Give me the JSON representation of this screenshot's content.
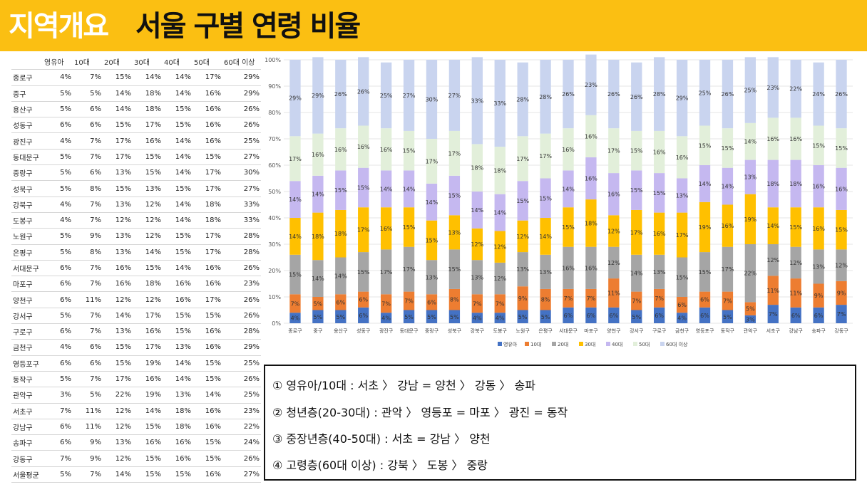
{
  "header": {
    "title_main": "지역개요",
    "title_sub": "서울 구별 연령 비율"
  },
  "table": {
    "columns": [
      "영유아",
      "10대",
      "20대",
      "30대",
      "40대",
      "50대",
      "60대 이상"
    ],
    "rows": [
      {
        "name": "종로구",
        "values": [
          "4%",
          "7%",
          "15%",
          "14%",
          "14%",
          "17%",
          "29%"
        ]
      },
      {
        "name": "중구",
        "values": [
          "5%",
          "5%",
          "14%",
          "18%",
          "14%",
          "16%",
          "29%"
        ]
      },
      {
        "name": "용산구",
        "values": [
          "5%",
          "6%",
          "14%",
          "18%",
          "15%",
          "16%",
          "26%"
        ]
      },
      {
        "name": "성동구",
        "values": [
          "6%",
          "6%",
          "15%",
          "17%",
          "15%",
          "16%",
          "26%"
        ]
      },
      {
        "name": "광진구",
        "values": [
          "4%",
          "7%",
          "17%",
          "16%",
          "14%",
          "16%",
          "25%"
        ]
      },
      {
        "name": "동대문구",
        "values": [
          "5%",
          "7%",
          "17%",
          "15%",
          "14%",
          "15%",
          "27%"
        ]
      },
      {
        "name": "중랑구",
        "values": [
          "5%",
          "6%",
          "13%",
          "15%",
          "14%",
          "17%",
          "30%"
        ]
      },
      {
        "name": "성북구",
        "values": [
          "5%",
          "8%",
          "15%",
          "13%",
          "15%",
          "17%",
          "27%"
        ]
      },
      {
        "name": "강북구",
        "values": [
          "4%",
          "7%",
          "13%",
          "12%",
          "14%",
          "18%",
          "33%"
        ]
      },
      {
        "name": "도봉구",
        "values": [
          "4%",
          "7%",
          "12%",
          "12%",
          "14%",
          "18%",
          "33%"
        ]
      },
      {
        "name": "노원구",
        "values": [
          "5%",
          "9%",
          "13%",
          "12%",
          "15%",
          "17%",
          "28%"
        ]
      },
      {
        "name": "은평구",
        "values": [
          "5%",
          "8%",
          "13%",
          "14%",
          "15%",
          "17%",
          "28%"
        ]
      },
      {
        "name": "서대문구",
        "values": [
          "6%",
          "7%",
          "16%",
          "15%",
          "14%",
          "16%",
          "26%"
        ]
      },
      {
        "name": "마포구",
        "values": [
          "6%",
          "7%",
          "16%",
          "18%",
          "16%",
          "16%",
          "23%"
        ]
      },
      {
        "name": "양천구",
        "values": [
          "6%",
          "11%",
          "12%",
          "12%",
          "16%",
          "17%",
          "26%"
        ]
      },
      {
        "name": "강서구",
        "values": [
          "5%",
          "7%",
          "14%",
          "17%",
          "15%",
          "15%",
          "26%"
        ]
      },
      {
        "name": "구로구",
        "values": [
          "6%",
          "7%",
          "13%",
          "16%",
          "15%",
          "16%",
          "28%"
        ]
      },
      {
        "name": "금천구",
        "values": [
          "4%",
          "6%",
          "15%",
          "17%",
          "13%",
          "16%",
          "29%"
        ]
      },
      {
        "name": "영등포구",
        "values": [
          "6%",
          "6%",
          "15%",
          "19%",
          "14%",
          "15%",
          "25%"
        ]
      },
      {
        "name": "동작구",
        "values": [
          "5%",
          "7%",
          "17%",
          "16%",
          "14%",
          "15%",
          "26%"
        ]
      },
      {
        "name": "관악구",
        "values": [
          "3%",
          "5%",
          "22%",
          "19%",
          "13%",
          "14%",
          "25%"
        ]
      },
      {
        "name": "서초구",
        "values": [
          "7%",
          "11%",
          "12%",
          "14%",
          "18%",
          "16%",
          "23%"
        ]
      },
      {
        "name": "강남구",
        "values": [
          "6%",
          "11%",
          "12%",
          "15%",
          "18%",
          "16%",
          "22%"
        ]
      },
      {
        "name": "송파구",
        "values": [
          "6%",
          "9%",
          "13%",
          "16%",
          "16%",
          "15%",
          "24%"
        ]
      },
      {
        "name": "강동구",
        "values": [
          "7%",
          "9%",
          "12%",
          "15%",
          "16%",
          "15%",
          "26%"
        ]
      },
      {
        "name": "서울평균",
        "values": [
          "5%",
          "7%",
          "14%",
          "15%",
          "15%",
          "16%",
          "27%"
        ]
      }
    ]
  },
  "chart_data": {
    "type": "bar",
    "stacked": "percent",
    "categories": [
      "종로구",
      "중구",
      "용산구",
      "성동구",
      "광진구",
      "동대문구",
      "중랑구",
      "성북구",
      "강북구",
      "도봉구",
      "노원구",
      "은평구",
      "서대문구",
      "마포구",
      "양천구",
      "강서구",
      "구로구",
      "금천구",
      "영등포구",
      "동작구",
      "관악구",
      "서초구",
      "강남구",
      "송파구",
      "강동구"
    ],
    "series": [
      {
        "name": "영유아",
        "color": "#4472c4",
        "values": [
          4,
          5,
          5,
          6,
          4,
          5,
          5,
          5,
          4,
          4,
          5,
          5,
          6,
          6,
          6,
          5,
          6,
          4,
          6,
          5,
          3,
          7,
          6,
          6,
          7
        ]
      },
      {
        "name": "10대",
        "color": "#ed7d31",
        "values": [
          7,
          5,
          6,
          6,
          7,
          7,
          6,
          8,
          7,
          7,
          9,
          8,
          7,
          7,
          11,
          7,
          7,
          6,
          6,
          7,
          5,
          11,
          11,
          9,
          9
        ]
      },
      {
        "name": "20대",
        "color": "#a5a5a5",
        "values": [
          15,
          14,
          14,
          15,
          17,
          17,
          13,
          15,
          13,
          12,
          13,
          13,
          16,
          16,
          12,
          14,
          13,
          15,
          15,
          17,
          22,
          12,
          12,
          13,
          12
        ]
      },
      {
        "name": "30대",
        "color": "#ffc000",
        "values": [
          14,
          18,
          18,
          17,
          16,
          15,
          15,
          13,
          12,
          12,
          12,
          14,
          15,
          18,
          12,
          17,
          16,
          17,
          19,
          16,
          19,
          14,
          15,
          16,
          15
        ]
      },
      {
        "name": "40대",
        "color": "#c5b8f0",
        "values": [
          14,
          14,
          15,
          15,
          14,
          14,
          14,
          15,
          14,
          14,
          15,
          15,
          14,
          16,
          16,
          15,
          15,
          13,
          14,
          14,
          13,
          18,
          18,
          16,
          16
        ]
      },
      {
        "name": "50대",
        "color": "#e2efda",
        "values": [
          17,
          16,
          16,
          16,
          16,
          15,
          17,
          17,
          18,
          18,
          17,
          17,
          16,
          16,
          17,
          15,
          16,
          16,
          15,
          15,
          14,
          16,
          16,
          15,
          15
        ]
      },
      {
        "name": "60대 이상",
        "color": "#c9d4ef",
        "values": [
          29,
          29,
          26,
          26,
          25,
          27,
          30,
          27,
          33,
          33,
          28,
          28,
          26,
          23,
          26,
          26,
          28,
          29,
          25,
          26,
          25,
          23,
          22,
          24,
          26
        ]
      }
    ],
    "yticks": [
      "0%",
      "10%",
      "20%",
      "30%",
      "40%",
      "50%",
      "60%",
      "70%",
      "80%",
      "90%",
      "100%"
    ],
    "ylim": [
      0,
      100
    ],
    "legend": "bottom"
  },
  "notes": [
    "① 영유아/10대 : 서초 〉 강남 = 양천 〉 강동 〉 송파",
    "② 청년층(20-30대) : 관악 〉 영등포 = 마포 〉 광진 = 동작",
    "③ 중장년층(40-50대) : 서초 = 강남 〉 양천",
    "④ 고령층(60대 이상) : 강북 〉 도봉 〉 중랑"
  ]
}
